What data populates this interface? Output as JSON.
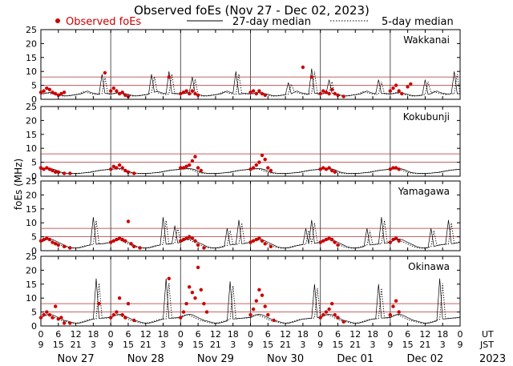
{
  "chart_data": {
    "type": "scatter",
    "title": "Observed foEs (Nov 27 - Dec 02, 2023)",
    "ylabel": "foEs (MHz)",
    "ylim": [
      0,
      25
    ],
    "yticks": [
      0,
      5,
      10,
      15,
      20,
      25
    ],
    "year": "2023",
    "legend": {
      "observed": "Observed foEs",
      "median27": "27-day median",
      "median5": "5-day median",
      "position": "top"
    },
    "colors": {
      "observed": "#cc0000",
      "hline": "#b03030",
      "median": "#000000"
    },
    "x_axis": {
      "ut_label": "UT",
      "jst_label": "JST",
      "ut_ticks": [
        "0",
        "6",
        "12",
        "18",
        "0",
        "6",
        "12",
        "18",
        "0",
        "6",
        "12",
        "18",
        "0",
        "6",
        "12",
        "18",
        "0",
        "6",
        "12",
        "18",
        "0",
        "6",
        "12",
        "18",
        "0"
      ],
      "jst_ticks": [
        "9",
        "15",
        "21",
        "3",
        "9",
        "15",
        "21",
        "3",
        "9",
        "15",
        "21",
        "3",
        "9",
        "15",
        "21",
        "3",
        "9",
        "15",
        "21",
        "3",
        "9",
        "15",
        "21",
        "3",
        "9"
      ],
      "dates": [
        "Nov 27",
        "Nov 28",
        "Nov 29",
        "Nov 30",
        "Dec 01",
        "Dec 02"
      ]
    },
    "hlines": [
      5,
      8
    ],
    "days": 6,
    "hours_per_day": 24,
    "stations": [
      {
        "name": "Wakkanai",
        "median_hourly": [
          2,
          2,
          2.2,
          2.5,
          2.2,
          2,
          1.8,
          1.5,
          1.3,
          1.2,
          1.3,
          1.5,
          1.6,
          1.8,
          2,
          2.5,
          3,
          2.5,
          2.2,
          2,
          1.8,
          2,
          2.2,
          2
        ],
        "spikes": [
          [
            0,
            21,
            9
          ],
          [
            1,
            14,
            9
          ],
          [
            1,
            20,
            10
          ],
          [
            2,
            4,
            8
          ],
          [
            2,
            19,
            10
          ],
          [
            3,
            13,
            6
          ],
          [
            3,
            21,
            11
          ],
          [
            4,
            3,
            7
          ],
          [
            4,
            20,
            7
          ],
          [
            5,
            12,
            7
          ],
          [
            5,
            22,
            10
          ]
        ],
        "observed": [
          [
            0,
            0,
            2.5
          ],
          [
            0,
            1,
            3
          ],
          [
            0,
            2,
            4
          ],
          [
            0,
            3,
            3.5
          ],
          [
            0,
            4,
            2.5
          ],
          [
            0,
            5,
            2
          ],
          [
            0,
            6,
            1.5
          ],
          [
            0,
            7,
            2
          ],
          [
            0,
            8,
            2.5
          ],
          [
            0,
            22,
            9.5
          ],
          [
            1,
            0,
            3
          ],
          [
            1,
            1,
            4
          ],
          [
            1,
            2,
            3
          ],
          [
            1,
            3,
            2
          ],
          [
            1,
            4,
            2.5
          ],
          [
            1,
            5,
            1.5
          ],
          [
            1,
            6,
            1
          ],
          [
            1,
            20,
            8
          ],
          [
            2,
            0,
            2
          ],
          [
            2,
            1,
            2.5
          ],
          [
            2,
            2,
            3
          ],
          [
            2,
            3,
            2
          ],
          [
            2,
            4,
            3
          ],
          [
            2,
            5,
            2
          ],
          [
            2,
            6,
            1.5
          ],
          [
            3,
            0,
            2.5
          ],
          [
            3,
            1,
            3
          ],
          [
            3,
            2,
            2
          ],
          [
            3,
            3,
            3
          ],
          [
            3,
            4,
            2
          ],
          [
            3,
            5,
            1.5
          ],
          [
            3,
            18,
            11.5
          ],
          [
            3,
            21,
            8
          ],
          [
            4,
            0,
            2
          ],
          [
            4,
            1,
            3
          ],
          [
            4,
            2,
            2.5
          ],
          [
            4,
            3,
            2
          ],
          [
            4,
            4,
            3.5
          ],
          [
            4,
            5,
            2
          ],
          [
            4,
            6,
            1.5
          ],
          [
            4,
            8,
            1
          ],
          [
            5,
            0,
            3
          ],
          [
            5,
            1,
            4
          ],
          [
            5,
            2,
            5
          ],
          [
            5,
            3,
            3
          ],
          [
            5,
            4,
            2
          ],
          [
            5,
            6,
            4.5
          ],
          [
            5,
            7,
            5.5
          ]
        ]
      },
      {
        "name": "Kokubunji",
        "median_hourly": [
          2.5,
          2.6,
          2.7,
          2.8,
          2.6,
          2.3,
          1.8,
          1.4,
          1.2,
          1.1,
          1,
          1,
          1,
          1,
          1.1,
          1.2,
          1.3,
          1.4,
          1.6,
          1.8,
          2,
          2.2,
          2.3,
          2.4
        ],
        "spikes": [],
        "observed": [
          [
            0,
            0,
            3
          ],
          [
            0,
            1,
            2.5
          ],
          [
            0,
            2,
            3
          ],
          [
            0,
            3,
            2.5
          ],
          [
            0,
            4,
            2
          ],
          [
            0,
            5,
            1.5
          ],
          [
            0,
            6,
            1.5
          ],
          [
            0,
            8,
            1
          ],
          [
            0,
            10,
            1
          ],
          [
            1,
            0,
            2.5
          ],
          [
            1,
            1,
            3.5
          ],
          [
            1,
            2,
            3
          ],
          [
            1,
            3,
            4
          ],
          [
            1,
            4,
            3
          ],
          [
            1,
            5,
            2
          ],
          [
            1,
            6,
            1.5
          ],
          [
            1,
            8,
            1
          ],
          [
            2,
            0,
            3
          ],
          [
            2,
            1,
            3
          ],
          [
            2,
            2,
            3.5
          ],
          [
            2,
            3,
            4
          ],
          [
            2,
            4,
            5.5
          ],
          [
            2,
            5,
            7
          ],
          [
            2,
            6,
            3
          ],
          [
            2,
            7,
            2
          ],
          [
            3,
            0,
            2.5
          ],
          [
            3,
            1,
            3
          ],
          [
            3,
            2,
            4
          ],
          [
            3,
            3,
            5
          ],
          [
            3,
            4,
            7.5
          ],
          [
            3,
            5,
            6
          ],
          [
            3,
            6,
            3
          ],
          [
            3,
            7,
            2
          ],
          [
            4,
            0,
            2.5
          ],
          [
            4,
            1,
            3
          ],
          [
            4,
            2,
            2.5
          ],
          [
            4,
            3,
            3
          ],
          [
            4,
            4,
            2
          ],
          [
            4,
            5,
            1.5
          ],
          [
            5,
            0,
            2.5
          ],
          [
            5,
            1,
            3
          ],
          [
            5,
            2,
            3
          ],
          [
            5,
            3,
            2.5
          ]
        ]
      },
      {
        "name": "Yamagawa",
        "median_hourly": [
          3,
          3.5,
          4,
          4.2,
          4,
          3.5,
          3,
          2.5,
          2,
          1.5,
          1.2,
          1,
          1,
          1,
          1.2,
          1.5,
          1.8,
          2,
          2.2,
          2.3,
          2.4,
          2.5,
          2.6,
          2.8
        ],
        "spikes": [
          [
            0,
            18,
            12
          ],
          [
            1,
            18,
            12
          ],
          [
            1,
            22,
            9
          ],
          [
            2,
            16,
            8
          ],
          [
            2,
            20,
            11
          ],
          [
            3,
            19,
            8
          ],
          [
            3,
            21,
            11
          ],
          [
            4,
            16,
            8
          ],
          [
            4,
            21,
            12
          ],
          [
            5,
            14,
            8
          ],
          [
            5,
            20,
            11
          ]
        ],
        "observed": [
          [
            0,
            0,
            3.5
          ],
          [
            0,
            1,
            4
          ],
          [
            0,
            2,
            4.5
          ],
          [
            0,
            3,
            4
          ],
          [
            0,
            4,
            3
          ],
          [
            0,
            5,
            2.5
          ],
          [
            0,
            6,
            2
          ],
          [
            0,
            8,
            1.5
          ],
          [
            0,
            10,
            1
          ],
          [
            1,
            0,
            3
          ],
          [
            1,
            1,
            3.5
          ],
          [
            1,
            2,
            4
          ],
          [
            1,
            3,
            4.5
          ],
          [
            1,
            4,
            4
          ],
          [
            1,
            5,
            3.5
          ],
          [
            1,
            6,
            10.5
          ],
          [
            1,
            7,
            2.5
          ],
          [
            1,
            8,
            1.5
          ],
          [
            1,
            10,
            1
          ],
          [
            2,
            0,
            3.5
          ],
          [
            2,
            1,
            4
          ],
          [
            2,
            2,
            4.5
          ],
          [
            2,
            3,
            5
          ],
          [
            2,
            4,
            4.5
          ],
          [
            2,
            5,
            3.5
          ],
          [
            2,
            6,
            2
          ],
          [
            2,
            8,
            1
          ],
          [
            3,
            0,
            3
          ],
          [
            3,
            1,
            3.5
          ],
          [
            3,
            2,
            4
          ],
          [
            3,
            3,
            4.5
          ],
          [
            3,
            4,
            3.5
          ],
          [
            3,
            5,
            2.5
          ],
          [
            3,
            7,
            1.5
          ],
          [
            4,
            0,
            3
          ],
          [
            4,
            1,
            3.5
          ],
          [
            4,
            2,
            4
          ],
          [
            4,
            3,
            4.5
          ],
          [
            4,
            4,
            4
          ],
          [
            4,
            5,
            3
          ],
          [
            4,
            6,
            2
          ],
          [
            5,
            0,
            3
          ],
          [
            5,
            1,
            4
          ],
          [
            5,
            2,
            4.5
          ],
          [
            5,
            3,
            3.5
          ]
        ]
      },
      {
        "name": "Okinawa",
        "median_hourly": [
          3,
          3.5,
          4,
          4.2,
          4,
          3.5,
          3,
          2.5,
          2,
          1.8,
          1.5,
          1.2,
          1,
          1,
          1.2,
          1.5,
          1.8,
          2.2,
          2.5,
          2.6,
          2.7,
          2.8,
          2.9,
          3
        ],
        "spikes": [
          [
            0,
            19,
            17
          ],
          [
            1,
            19,
            17
          ],
          [
            2,
            17,
            16
          ],
          [
            3,
            22,
            15
          ],
          [
            4,
            20,
            15
          ],
          [
            5,
            17,
            17
          ]
        ],
        "observed": [
          [
            0,
            0,
            3
          ],
          [
            0,
            1,
            4
          ],
          [
            0,
            2,
            5
          ],
          [
            0,
            3,
            4
          ],
          [
            0,
            4,
            3
          ],
          [
            0,
            5,
            7
          ],
          [
            0,
            6,
            2.5
          ],
          [
            0,
            7,
            3
          ],
          [
            0,
            8,
            1
          ],
          [
            0,
            10,
            1
          ],
          [
            0,
            20,
            8
          ],
          [
            1,
            0,
            3
          ],
          [
            1,
            1,
            4
          ],
          [
            1,
            2,
            5
          ],
          [
            1,
            3,
            10
          ],
          [
            1,
            4,
            4
          ],
          [
            1,
            5,
            3
          ],
          [
            1,
            6,
            8
          ],
          [
            1,
            8,
            2
          ],
          [
            1,
            20,
            17
          ],
          [
            2,
            0,
            3
          ],
          [
            2,
            1,
            5
          ],
          [
            2,
            2,
            8
          ],
          [
            2,
            3,
            14
          ],
          [
            2,
            4,
            12
          ],
          [
            2,
            5,
            10
          ],
          [
            2,
            6,
            21
          ],
          [
            2,
            7,
            13
          ],
          [
            2,
            8,
            8
          ],
          [
            2,
            9,
            5
          ],
          [
            3,
            0,
            4
          ],
          [
            3,
            1,
            6
          ],
          [
            3,
            2,
            9
          ],
          [
            3,
            3,
            13
          ],
          [
            3,
            4,
            11
          ],
          [
            3,
            5,
            7
          ],
          [
            3,
            6,
            4
          ],
          [
            3,
            8,
            2
          ],
          [
            4,
            0,
            3
          ],
          [
            4,
            1,
            4
          ],
          [
            4,
            2,
            5
          ],
          [
            4,
            3,
            6
          ],
          [
            4,
            4,
            8
          ],
          [
            4,
            5,
            4
          ],
          [
            4,
            6,
            3
          ],
          [
            4,
            8,
            1.5
          ],
          [
            5,
            0,
            4
          ],
          [
            5,
            1,
            7
          ],
          [
            5,
            2,
            9
          ],
          [
            5,
            3,
            5
          ]
        ]
      }
    ]
  }
}
